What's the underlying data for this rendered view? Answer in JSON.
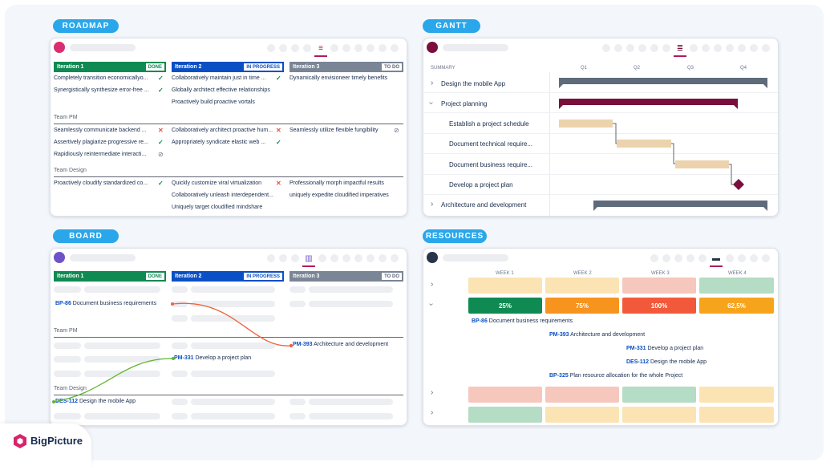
{
  "sections": {
    "roadmap": "ROADMAP",
    "gantt": "GANTT",
    "board": "BOARD",
    "resources": "RESOURCES"
  },
  "colors": {
    "accent": "#2aa7ea",
    "done": "#0f8a52",
    "in_progress": "#0b4fc4",
    "todo": "#7a8595",
    "gantt_parent": "#7a0f3e",
    "gantt_summary": "#5f6b7a",
    "gantt_task": "#ecd3ad"
  },
  "iterations": [
    {
      "label": "Iteration 1",
      "status": "DONE"
    },
    {
      "label": "Iteration 2",
      "status": "IN PROGRESS"
    },
    {
      "label": "Iteration 3",
      "status": "TO DO"
    }
  ],
  "roadmap": {
    "teams": [
      "Team PM",
      "Team Design"
    ],
    "rows": {
      "r0c0": "Completely transition economicallyo...",
      "r1c0": "Synergistically synthesize error-free ...",
      "r0c1": "Collaboratively maintain just in time ...",
      "r1c1": "Globally architect effective relationships",
      "r2c1": "Proactively build proactive vortals",
      "r0c2": "Dynamically envisioneer timely benefits",
      "p0c0": "Seamlessly communicate backend ...",
      "p1c0": "Assertively plagiarize progressive re...",
      "p2c0": "Rapidiously reintermediate interacti...",
      "p0c1": "Collaboratively architect proactive hum...",
      "p1c1": "Appropriately syndicate elastic web ...",
      "p0c2": "Seamlessly utilize flexible fungibility",
      "d0c0": "Proactively cloudify standardized co...",
      "d0c1": "Quickly customize viral virtualization",
      "d1c1": "Collaboratively unleash interdependent...",
      "d2c1": "Uniquely target cloudified mindshare",
      "d0c2": "Professionally morph impactful results",
      "d1c2": "uniquely expedite cloudified imperatives"
    }
  },
  "gantt": {
    "summary_label": "SUMMARY",
    "quarters": [
      "Q1",
      "Q2",
      "Q3",
      "Q4"
    ],
    "rows": [
      "Design the mobile App",
      "Project planning",
      "Establish a project schedule",
      "Document technical require...",
      "Document business require...",
      "Develop a project plan",
      "Architecture and development"
    ]
  },
  "board": {
    "teams": [
      "Team PM",
      "Team Design"
    ],
    "cards": [
      {
        "key": "BP-86",
        "title": "Document business requirements"
      },
      {
        "key": "PM-393",
        "title": "Architecture and development"
      },
      {
        "key": "PM-331",
        "title": "Develop a project plan"
      },
      {
        "key": "DES-112",
        "title": "Design the mobile App"
      }
    ]
  },
  "resources": {
    "weeks": [
      "WEEK 1",
      "WEEK 2",
      "WEEK 3",
      "WEEK 4"
    ],
    "utilization": [
      "25%",
      "75%",
      "100%",
      "62,5%"
    ],
    "tasks": [
      {
        "key": "BP-86",
        "title": "Document business requirements"
      },
      {
        "key": "PM-393",
        "title": "Architecture and development"
      },
      {
        "key": "PM-331",
        "title": "Develop a project plan"
      },
      {
        "key": "DES-112",
        "title": "Design the mobile App"
      },
      {
        "key": "BP-325",
        "title": "Plan resource allocation for the whole Project"
      }
    ]
  },
  "brand": {
    "name": "BigPicture"
  }
}
